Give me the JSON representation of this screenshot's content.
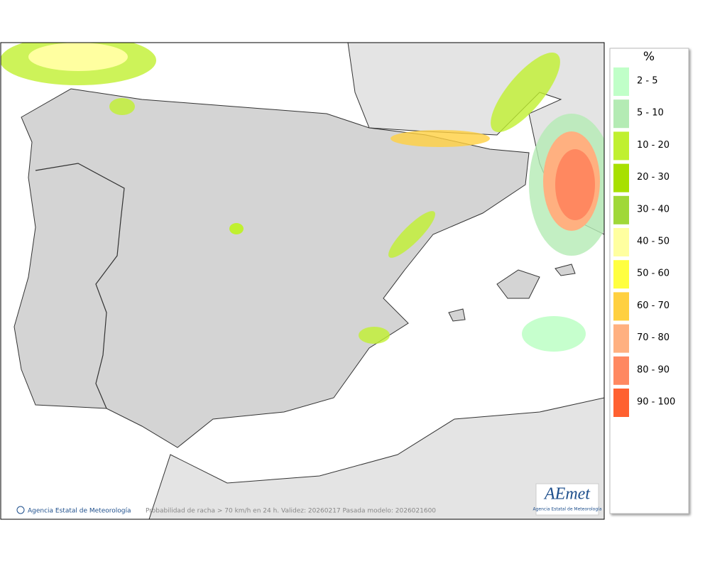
{
  "map": {
    "caption": "Probabilidad de racha > 70 km/h en 24 h. Validez: 20260217 Pasada modelo: 2026021600",
    "credit": "Agencia Estatal de Meteorología",
    "logo": {
      "text": "AEmet",
      "subtitle": "Agencia Estatal de Meteorología"
    }
  },
  "legend": {
    "title": "%",
    "items": [
      {
        "label": "2 - 5",
        "color": "#c0ffc8"
      },
      {
        "label": "5 - 10",
        "color": "#b4ebb4"
      },
      {
        "label": "10 - 20",
        "color": "#c0f030"
      },
      {
        "label": "20 - 30",
        "color": "#a8e000"
      },
      {
        "label": "30 - 40",
        "color": "#a0d838"
      },
      {
        "label": "40 - 50",
        "color": "#ffffa0"
      },
      {
        "label": "50 - 60",
        "color": "#ffff40"
      },
      {
        "label": "60 - 70",
        "color": "#ffd040"
      },
      {
        "label": "70 - 80",
        "color": "#ffb080"
      },
      {
        "label": "80 - 90",
        "color": "#ff8860"
      },
      {
        "label": "90 - 100",
        "color": "#ff6030"
      }
    ]
  }
}
